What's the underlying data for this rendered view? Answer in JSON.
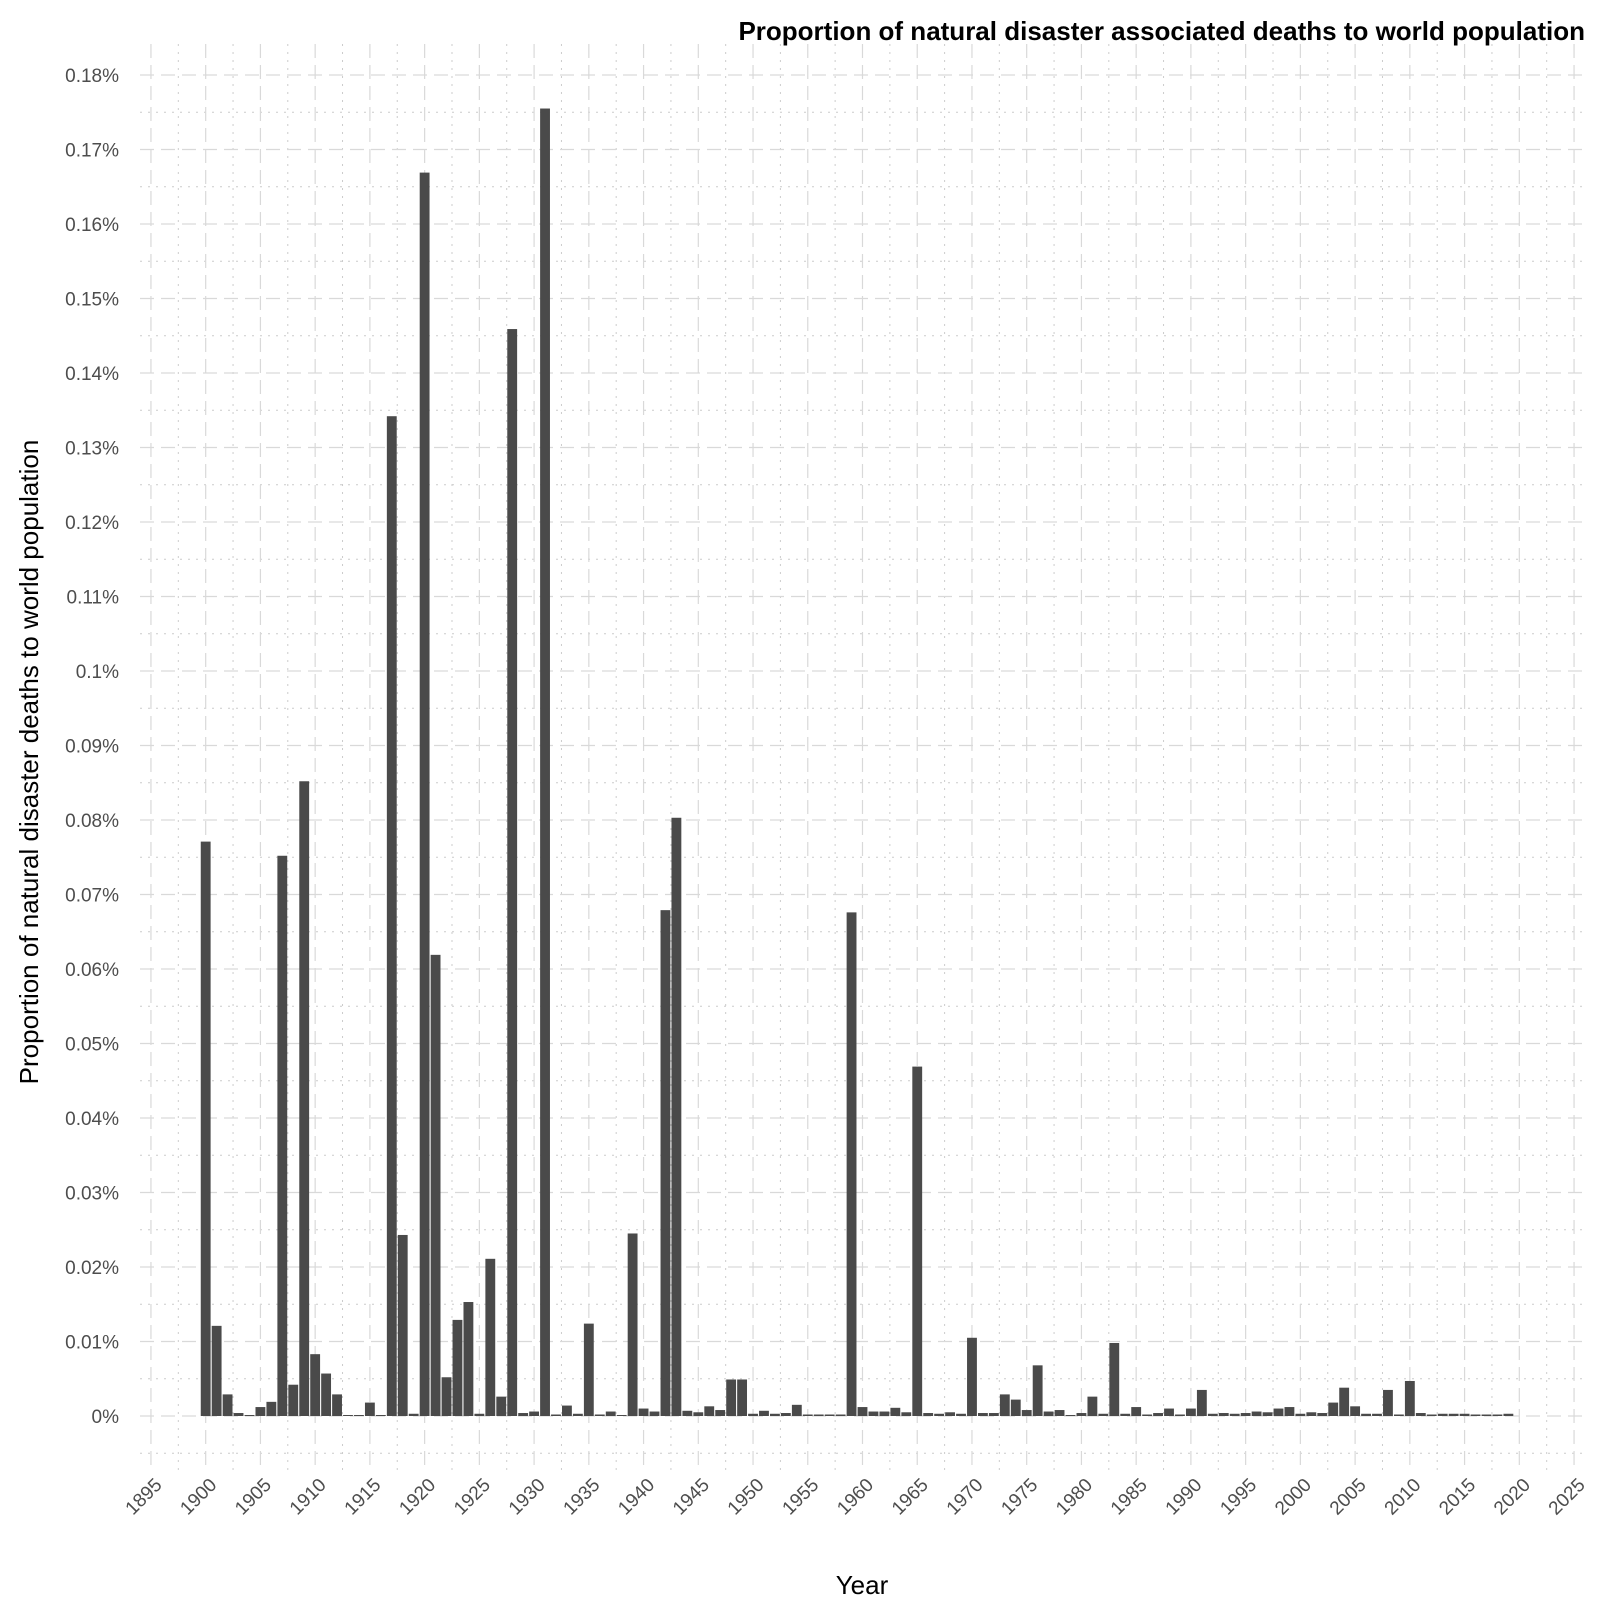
{
  "chart_data": {
    "type": "bar",
    "title": "Proportion of natural disaster associated deaths to world population",
    "xlabel": "Year",
    "ylabel": "Proportion of natural disaster deaths to world population",
    "x_ticks": [
      "1895",
      "1900",
      "1905",
      "1910",
      "1915",
      "1920",
      "1925",
      "1930",
      "1935",
      "1940",
      "1945",
      "1950",
      "1955",
      "1960",
      "1965",
      "1970",
      "1975",
      "1980",
      "1985",
      "1990",
      "1995",
      "2000",
      "2005",
      "2010",
      "2015",
      "2020",
      "2025"
    ],
    "y_ticks": [
      "0%",
      "0.01%",
      "0.02%",
      "0.03%",
      "0.04%",
      "0.05%",
      "0.06%",
      "0.07%",
      "0.08%",
      "0.09%",
      "0.1%",
      "0.11%",
      "0.12%",
      "0.13%",
      "0.14%",
      "0.15%",
      "0.16%",
      "0.17%",
      "0.18%"
    ],
    "xlim": [
      1894,
      2026
    ],
    "ylim": [
      -0.005,
      0.18
    ],
    "y_unit": "%",
    "grid": true,
    "bar_color": "#4a4a4a",
    "x": [
      1900,
      1901,
      1902,
      1903,
      1904,
      1905,
      1906,
      1907,
      1908,
      1909,
      1910,
      1911,
      1912,
      1913,
      1914,
      1915,
      1916,
      1917,
      1918,
      1919,
      1920,
      1921,
      1922,
      1923,
      1924,
      1925,
      1926,
      1927,
      1928,
      1929,
      1930,
      1931,
      1932,
      1933,
      1934,
      1935,
      1936,
      1937,
      1938,
      1939,
      1940,
      1941,
      1942,
      1943,
      1944,
      1945,
      1946,
      1947,
      1948,
      1949,
      1950,
      1951,
      1952,
      1953,
      1954,
      1955,
      1956,
      1957,
      1958,
      1959,
      1960,
      1961,
      1962,
      1963,
      1964,
      1965,
      1966,
      1967,
      1968,
      1969,
      1970,
      1971,
      1972,
      1973,
      1974,
      1975,
      1976,
      1977,
      1978,
      1979,
      1980,
      1981,
      1982,
      1983,
      1984,
      1985,
      1986,
      1987,
      1988,
      1989,
      1990,
      1991,
      1992,
      1993,
      1994,
      1995,
      1996,
      1997,
      1998,
      1999,
      2000,
      2001,
      2002,
      2003,
      2004,
      2005,
      2006,
      2007,
      2008,
      2009,
      2010,
      2011,
      2012,
      2013,
      2014,
      2015,
      2016,
      2017,
      2018,
      2019
    ],
    "values": [
      0.0771,
      0.0121,
      0.0029,
      0.0004,
      0,
      0.0012,
      0.0019,
      0.0752,
      0.0042,
      0.0852,
      0.0083,
      0.0057,
      0.0029,
      0.0001,
      0.0001,
      0.0018,
      0,
      0.1342,
      0.0243,
      0.0003,
      0.1669,
      0.0619,
      0.0052,
      0.0129,
      0.0153,
      0.0003,
      0.0211,
      0.0026,
      0.1459,
      0.0004,
      0.0006,
      0.1755,
      0.0002,
      0.0014,
      0.0003,
      0.0124,
      0.0002,
      0.0006,
      0.0001,
      0.0245,
      0.001,
      0.0006,
      0.0679,
      0.0803,
      0.0007,
      0.0005,
      0.0013,
      0.0008,
      0.0049,
      0.0049,
      0.0003,
      0.0007,
      0.0003,
      0.0004,
      0.0015,
      0.0002,
      0.0002,
      0.0002,
      0.0002,
      0.0676,
      0.0012,
      0.0006,
      0.0006,
      0.0011,
      0.0005,
      0.0469,
      0.0004,
      0.0003,
      0.0005,
      0.0003,
      0.0105,
      0.0004,
      0.0004,
      0.0029,
      0.0022,
      0.0008,
      0.0068,
      0.0006,
      0.0008,
      0.0001,
      0.0004,
      0.0026,
      0.0003,
      0.0098,
      0.0003,
      0.0012,
      0.0002,
      0.0004,
      0.001,
      0.0002,
      0.001,
      0.0035,
      0.0003,
      0.0004,
      0.0003,
      0.0004,
      0.0006,
      0.0005,
      0.001,
      0.0012,
      0.0003,
      0.0005,
      0.0004,
      0.0018,
      0.0038,
      0.0013,
      0.0003,
      0.0003,
      0.0035,
      0.0002,
      0.0047,
      0.0004,
      0.0002,
      0.0003,
      0.0003,
      0.0003,
      0.0002,
      0.0002,
      0.0002,
      0.0003
    ]
  }
}
